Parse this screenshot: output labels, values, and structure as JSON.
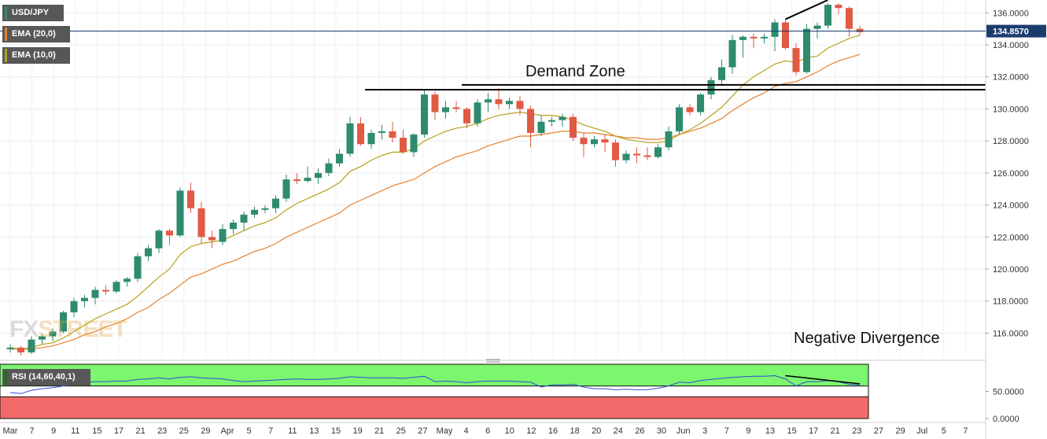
{
  "legend": {
    "symbol": "USD/JPY",
    "ema20": "EMA (20,0)",
    "ema10": "EMA (10,0)",
    "rsi": "RSI (14,60,40,1)"
  },
  "colors": {
    "up": "#2e8b6f",
    "down": "#e05a44",
    "ema20": "#e8802a",
    "ema10": "#b8a01a",
    "rsi_line": "#2f4fd8",
    "rsi_upper": "#7cf56f",
    "rsi_lower": "#f36a6a",
    "price_tag": "#1c3c6e",
    "legend_bg": "#575757"
  },
  "annotations": {
    "demand_zone": "Demand Zone",
    "negative_divergence": "Negative Divergence"
  },
  "watermark": {
    "part1": "FX",
    "part2": "STREET"
  },
  "price_tag": "134.8570",
  "chart_data": {
    "type": "candlestick",
    "title": "USD/JPY",
    "ylim": [
      114.5,
      136.8
    ],
    "y_ticks": [
      "116.0000",
      "118.0000",
      "120.0000",
      "122.0000",
      "124.0000",
      "126.0000",
      "128.0000",
      "130.0000",
      "132.0000",
      "134.0000",
      "136.0000"
    ],
    "x_ticks": [
      "Mar",
      "7",
      "9",
      "11",
      "15",
      "17",
      "21",
      "23",
      "25",
      "29",
      "Apr",
      "5",
      "7",
      "11",
      "13",
      "15",
      "19",
      "21",
      "25",
      "27",
      "May",
      "4",
      "6",
      "10",
      "12",
      "16",
      "18",
      "20",
      "24",
      "26",
      "30",
      "Jun",
      "3",
      "7",
      "9",
      "13",
      "15",
      "17",
      "21",
      "23",
      "27",
      "29",
      "Jul",
      "5",
      "7"
    ],
    "current_price": 134.857,
    "candles": [
      [
        115.0,
        115.3,
        114.8,
        115.1
      ],
      [
        115.1,
        115.2,
        114.6,
        114.8
      ],
      [
        114.8,
        115.8,
        114.7,
        115.6
      ],
      [
        115.6,
        115.9,
        115.3,
        115.8
      ],
      [
        115.8,
        116.3,
        115.5,
        116.1
      ],
      [
        116.1,
        117.4,
        116.0,
        117.3
      ],
      [
        117.3,
        118.2,
        117.0,
        118.0
      ],
      [
        118.0,
        118.4,
        117.6,
        118.2
      ],
      [
        118.2,
        118.9,
        117.8,
        118.7
      ],
      [
        118.7,
        119.0,
        118.4,
        118.6
      ],
      [
        118.6,
        119.3,
        118.5,
        119.2
      ],
      [
        119.2,
        119.5,
        118.9,
        119.4
      ],
      [
        119.4,
        121.0,
        119.2,
        120.8
      ],
      [
        120.8,
        121.5,
        120.5,
        121.3
      ],
      [
        121.3,
        122.5,
        121.0,
        122.4
      ],
      [
        122.4,
        122.5,
        121.5,
        122.1
      ],
      [
        122.1,
        125.1,
        122.0,
        124.9
      ],
      [
        124.9,
        125.4,
        123.5,
        123.8
      ],
      [
        123.8,
        124.2,
        121.6,
        122.0
      ],
      [
        122.0,
        122.4,
        121.3,
        121.8
      ],
      [
        121.7,
        122.8,
        121.5,
        122.5
      ],
      [
        122.5,
        123.1,
        122.2,
        122.9
      ],
      [
        122.9,
        123.6,
        122.4,
        123.4
      ],
      [
        123.4,
        123.9,
        123.2,
        123.7
      ],
      [
        123.7,
        124.0,
        123.5,
        123.8
      ],
      [
        123.8,
        124.6,
        123.5,
        124.4
      ],
      [
        124.4,
        125.9,
        124.2,
        125.6
      ],
      [
        125.6,
        126.0,
        125.3,
        125.5
      ],
      [
        125.5,
        126.4,
        125.4,
        125.7
      ],
      [
        125.7,
        126.3,
        125.3,
        126.0
      ],
      [
        126.0,
        126.9,
        125.8,
        126.6
      ],
      [
        126.6,
        127.5,
        126.4,
        127.2
      ],
      [
        127.2,
        129.5,
        127.0,
        129.1
      ],
      [
        129.1,
        129.5,
        127.7,
        127.8
      ],
      [
        127.8,
        128.7,
        127.5,
        128.5
      ],
      [
        128.5,
        129.0,
        128.1,
        128.6
      ],
      [
        128.6,
        129.2,
        127.9,
        128.2
      ],
      [
        128.2,
        128.7,
        127.2,
        127.3
      ],
      [
        127.3,
        128.5,
        127.0,
        128.4
      ],
      [
        128.4,
        131.2,
        128.2,
        130.9
      ],
      [
        130.9,
        131.1,
        129.3,
        129.8
      ],
      [
        129.8,
        130.5,
        129.4,
        130.1
      ],
      [
        130.1,
        130.5,
        129.8,
        130.0
      ],
      [
        130.0,
        130.1,
        128.8,
        129.1
      ],
      [
        129.1,
        130.6,
        128.9,
        130.4
      ],
      [
        130.4,
        131.0,
        129.8,
        130.6
      ],
      [
        130.6,
        131.3,
        130.0,
        130.3
      ],
      [
        130.3,
        130.7,
        130.0,
        130.5
      ],
      [
        130.5,
        130.8,
        129.6,
        130.0
      ],
      [
        130.0,
        130.2,
        127.6,
        128.5
      ],
      [
        128.5,
        129.6,
        128.3,
        129.2
      ],
      [
        129.2,
        129.5,
        128.9,
        129.3
      ],
      [
        129.3,
        129.7,
        128.9,
        129.5
      ],
      [
        129.5,
        129.7,
        128.0,
        128.2
      ],
      [
        128.2,
        128.5,
        127.0,
        127.8
      ],
      [
        127.8,
        128.3,
        127.6,
        128.1
      ],
      [
        128.1,
        128.4,
        127.3,
        127.9
      ],
      [
        127.9,
        128.1,
        126.4,
        126.8
      ],
      [
        126.8,
        127.4,
        126.6,
        127.2
      ],
      [
        127.2,
        127.6,
        126.6,
        127.1
      ],
      [
        127.1,
        127.6,
        126.8,
        127.0
      ],
      [
        127.0,
        127.8,
        126.9,
        127.6
      ],
      [
        127.6,
        128.9,
        127.4,
        128.6
      ],
      [
        128.6,
        130.3,
        128.4,
        130.1
      ],
      [
        130.1,
        130.3,
        129.6,
        129.8
      ],
      [
        129.8,
        131.0,
        129.6,
        130.9
      ],
      [
        130.9,
        132.0,
        130.6,
        131.8
      ],
      [
        131.8,
        133.1,
        131.5,
        132.6
      ],
      [
        132.6,
        134.6,
        132.2,
        134.3
      ],
      [
        134.3,
        134.6,
        133.2,
        134.5
      ],
      [
        134.5,
        134.7,
        133.8,
        134.4
      ],
      [
        134.4,
        134.7,
        134.1,
        134.5
      ],
      [
        134.5,
        135.6,
        133.6,
        135.4
      ],
      [
        135.4,
        135.6,
        133.7,
        133.8
      ],
      [
        133.8,
        134.1,
        132.1,
        132.3
      ],
      [
        132.3,
        135.3,
        132.2,
        135.0
      ],
      [
        135.0,
        135.4,
        134.4,
        135.2
      ],
      [
        135.2,
        136.6,
        135.0,
        136.5
      ],
      [
        136.5,
        136.6,
        135.9,
        136.3
      ],
      [
        136.3,
        136.4,
        134.5,
        135.0
      ],
      [
        135.0,
        135.2,
        134.6,
        134.8
      ]
    ],
    "ema10": [
      115.1,
      115.0,
      115.1,
      115.3,
      115.4,
      115.7,
      116.1,
      116.5,
      116.9,
      117.2,
      117.5,
      117.8,
      118.3,
      118.9,
      119.5,
      120.0,
      120.9,
      121.4,
      121.6,
      121.7,
      121.8,
      122.1,
      122.4,
      122.7,
      122.9,
      123.2,
      123.7,
      124.1,
      124.4,
      124.7,
      125.0,
      125.4,
      126.1,
      126.4,
      126.8,
      127.1,
      127.3,
      127.3,
      127.5,
      128.0,
      128.3,
      128.6,
      128.8,
      128.9,
      129.1,
      129.4,
      129.6,
      129.7,
      129.8,
      129.7,
      129.6,
      129.6,
      129.5,
      129.3,
      129.0,
      128.8,
      128.6,
      128.3,
      128.1,
      128.0,
      127.9,
      127.9,
      128.0,
      128.4,
      128.7,
      129.1,
      129.6,
      130.1,
      130.8,
      131.5,
      132.0,
      132.4,
      132.8,
      133.0,
      132.9,
      133.2,
      133.3,
      133.8,
      134.1,
      134.4,
      134.6
    ],
    "ema20": [
      115.0,
      115.0,
      115.0,
      115.1,
      115.2,
      115.4,
      115.6,
      115.9,
      116.1,
      116.4,
      116.6,
      116.9,
      117.3,
      117.6,
      118.1,
      118.5,
      119.0,
      119.5,
      119.7,
      120.0,
      120.3,
      120.5,
      120.8,
      121.1,
      121.3,
      121.6,
      122.0,
      122.3,
      122.6,
      122.9,
      123.2,
      123.5,
      124.0,
      124.3,
      124.6,
      124.9,
      125.2,
      125.4,
      125.6,
      126.0,
      126.4,
      126.7,
      127.0,
      127.2,
      127.4,
      127.7,
      127.9,
      128.1,
      128.3,
      128.3,
      128.4,
      128.5,
      128.6,
      128.6,
      128.5,
      128.5,
      128.4,
      128.3,
      128.2,
      128.2,
      128.1,
      128.1,
      128.2,
      128.4,
      128.6,
      128.8,
      129.1,
      129.4,
      129.9,
      130.3,
      130.7,
      131.0,
      131.4,
      131.6,
      131.7,
      132.0,
      132.3,
      132.7,
      133.0,
      133.2,
      133.4
    ],
    "demand_zone_levels": [
      131.2,
      131.5
    ],
    "rsi": {
      "name": "RSI (14,60,40,1)",
      "upper": 60,
      "lower": 40,
      "y_ticks": [
        "50.0000",
        "0.0000"
      ],
      "values": [
        48,
        46,
        52,
        55,
        57,
        60,
        63,
        66,
        68,
        68,
        69,
        69,
        72,
        73,
        75,
        73,
        76,
        77,
        75,
        74,
        73,
        70,
        68,
        69,
        70,
        71,
        72,
        73,
        72,
        72,
        73,
        74,
        77,
        76,
        75,
        75,
        75,
        74,
        76,
        78,
        68,
        69,
        68,
        66,
        68,
        69,
        69,
        69,
        68,
        67,
        58,
        62,
        62,
        63,
        58,
        55,
        55,
        53,
        54,
        53,
        53,
        56,
        60,
        67,
        66,
        70,
        72,
        74,
        76,
        77,
        78,
        78,
        79,
        73,
        60,
        68,
        68,
        70,
        68,
        63,
        62
      ]
    }
  }
}
